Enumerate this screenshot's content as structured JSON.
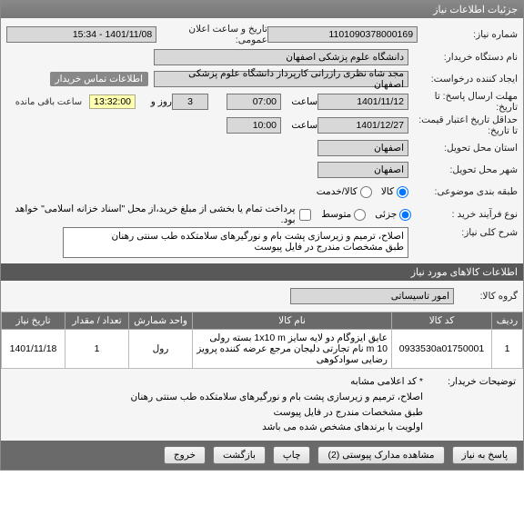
{
  "titlebar": "جزئیات اطلاعات نیاز",
  "labels": {
    "need_no": "شماره نیاز:",
    "public_date": "تاریخ و ساعت اعلان عمومی:",
    "org": "نام دستگاه خریدار:",
    "creator": "ایجاد کننده درخواست:",
    "buyer_contact": "اطلاعات تماس خریدار",
    "deadline": "مهلت ارسال پاسخ: تا تاریخ:",
    "time": "ساعت",
    "days": "روز و",
    "remain": "ساعت باقی مانده",
    "price_valid": "حداقل تاریخ اعتبار قیمت: تا تاریخ:",
    "delivery_state": "استان محل تحویل:",
    "delivery_city": "شهر محل تحویل:",
    "budget_row": "طبقه بندی موضوعی:",
    "budget_opt_goods": "کالا",
    "budget_opt_service": "کالا/خدمت",
    "purchase_type": "نوع فرآیند خرید :",
    "purchase_opt1": "جزئی",
    "purchase_opt2": "متوسط",
    "pay_note": "پرداخت تمام یا بخشی از مبلغ خرید،از محل \"اسناد خزانه اسلامی\" خواهد بود.",
    "need_desc": "شرح کلی نیاز:",
    "goods_info": "اطلاعات کالاهای مورد نیاز",
    "goods_group": "گروه کالا:",
    "th_row": "ردیف",
    "th_code": "کد کالا",
    "th_name": "نام کالا",
    "th_unit": "واحد شمارش",
    "th_qty": "تعداد / مقدار",
    "th_date": "تاریخ نیاز",
    "buyer_remark": "توضیحات خریدار:",
    "btn_answer": "پاسخ به نیاز",
    "btn_docs": "مشاهده مدارک پیوستی (2)",
    "btn_print": "چاپ",
    "btn_back": "بازگشت",
    "btn_exit": "خروج"
  },
  "values": {
    "need_no": "1101090378000169",
    "public_date": "1401/11/08 - 15:34",
    "org": "دانشگاه علوم پزشکی اصفهان",
    "creator": "مجد شاه نظری رازرانی کارپرداز دانشگاه علوم پزشکی اصفهان",
    "deadline_date": "1401/11/12",
    "deadline_time": "07:00",
    "days_left": "3",
    "countdown": "13:32:00",
    "price_valid_date": "1401/12/27",
    "price_valid_time": "10:00",
    "state": "اصفهان",
    "city": "اصفهان",
    "need_desc": "اصلاح، ترمیم و زیرسازی پشت بام و نورگیرهای سلامتکده طب سنتی رهنان\nطبق مشخصات مندرج در فایل پیوست",
    "goods_group": "امور تاسیساتی",
    "buyer_remark": "* کد اعلامی مشابه\nاصلاح، ترمیم و زیرسازی پشت بام و نورگیرهای سلامتکده طب سنتی رهنان\nطبق مشخصات مندرج در فایل پیوست\nاولویت با برندهای مشخص شده می باشد"
  },
  "table_rows": [
    {
      "row": "1",
      "code": "0933530a01750001",
      "name": "عایق ایزوگام دو لایه سایز 1x10 m بسته رولی 10 m نام تجارتی دلیجان مرجع عرضه کننده پرویز رضایی سوادکوهی",
      "unit": "رول",
      "qty": "1",
      "date": "1401/11/18"
    }
  ],
  "colors": {
    "titlebar_bg": "#777777",
    "darkbar_bg": "#585858",
    "table_header_bg": "#6a6a6a",
    "countdown_bg": "#ffffb0",
    "field_border": "#777777"
  }
}
